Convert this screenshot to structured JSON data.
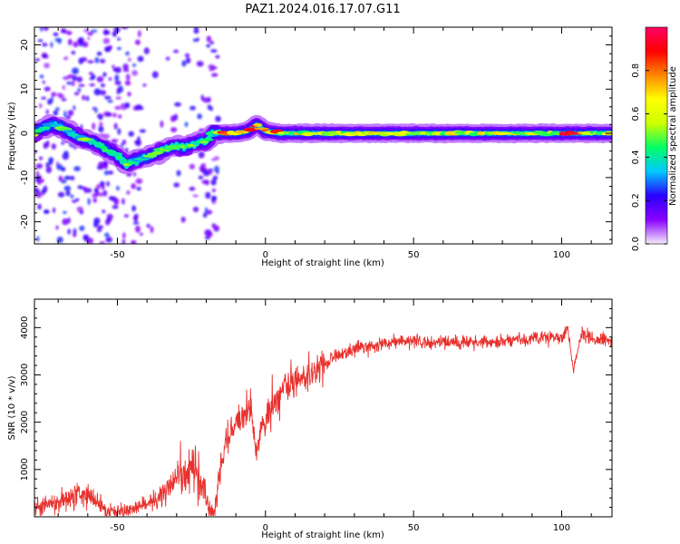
{
  "title": "PAZ1.2024.016.17.07.G11",
  "chart_data": [
    {
      "type": "heatmap",
      "xlabel": "Height of straight line (km)",
      "ylabel": "Frequency (Hz)",
      "xlim": [
        -78,
        117
      ],
      "ylim": [
        -25,
        24
      ],
      "xticks": [
        -50,
        0,
        50,
        100
      ],
      "yticks": [
        -20,
        -10,
        0,
        10,
        20
      ],
      "colorbar": {
        "label": "Normalized spectral amplitude",
        "range": [
          0,
          1
        ],
        "ticks": [
          0.0,
          0.2,
          0.4,
          0.6,
          0.8
        ],
        "colors": [
          "#f5ecfb",
          "#8a00ff",
          "#2a00ff",
          "#00c8ff",
          "#00ff66",
          "#ccff00",
          "#ffff00",
          "#ff8800",
          "#ff0000",
          "#ff0066"
        ]
      },
      "ridge": {
        "x": [
          -78,
          -72,
          -68,
          -63,
          -58,
          -53,
          -50,
          -47,
          -43,
          -39,
          -35,
          -31,
          -27,
          -23,
          -20,
          -18,
          -15,
          -10,
          -6,
          -3,
          0,
          5,
          20,
          40,
          60,
          80,
          100,
          117
        ],
        "y": [
          0,
          2,
          1,
          -1,
          -2,
          -4,
          -5,
          -7,
          -6,
          -5,
          -4,
          -3,
          -3,
          -2,
          -2,
          0,
          0,
          0,
          0.5,
          2,
          0.5,
          0,
          0,
          0,
          0,
          0,
          0,
          0
        ]
      }
    },
    {
      "type": "line",
      "xlabel": "Height of straight line (km)",
      "ylabel": "SNR (10 * v/v)",
      "xlim": [
        -78,
        117
      ],
      "ylim": [
        0,
        4600
      ],
      "xticks": [
        -50,
        0,
        50,
        100
      ],
      "yticks": [
        1000,
        2000,
        3000,
        4000
      ],
      "line_color": "#e8302c",
      "series": [
        {
          "x": [
            -78,
            -70,
            -66,
            -62,
            -58,
            -54,
            -50,
            -45,
            -40,
            -36,
            -33,
            -30,
            -27,
            -24,
            -21,
            -19,
            -17,
            -15,
            -13,
            -11,
            -8,
            -5,
            -3,
            -1,
            0,
            2,
            5,
            8,
            12,
            16,
            20,
            25,
            30,
            35,
            40,
            45,
            50,
            55,
            60,
            70,
            80,
            90,
            95,
            100,
            102,
            104,
            107,
            110,
            117
          ],
          "y": [
            200,
            300,
            450,
            500,
            350,
            150,
            100,
            150,
            250,
            400,
            650,
            800,
            900,
            1100,
            700,
            100,
            150,
            1100,
            1600,
            1900,
            2100,
            2300,
            1400,
            1900,
            2000,
            2300,
            2500,
            2800,
            2900,
            3100,
            3250,
            3450,
            3550,
            3600,
            3650,
            3700,
            3700,
            3700,
            3700,
            3700,
            3700,
            3750,
            3800,
            3800,
            4000,
            3100,
            3900,
            3750,
            3750
          ]
        }
      ]
    }
  ]
}
